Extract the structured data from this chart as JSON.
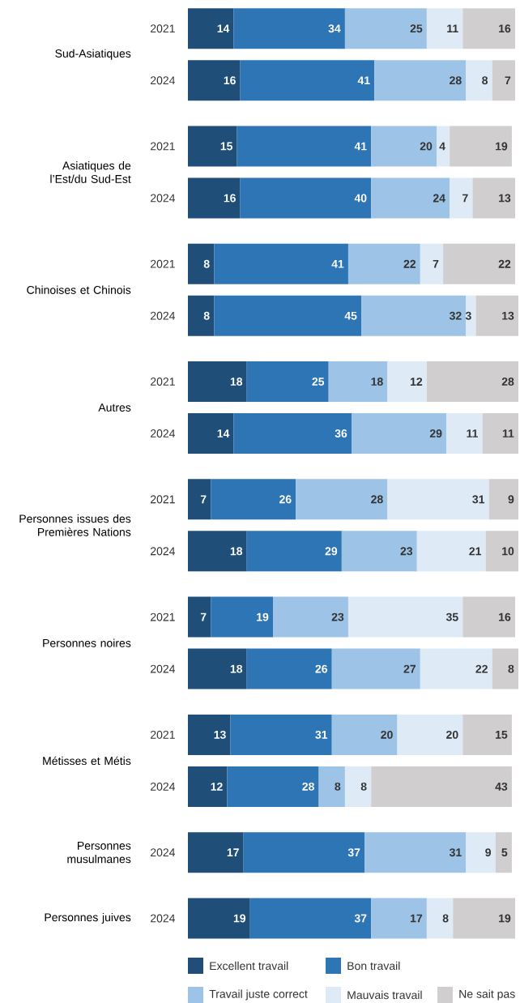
{
  "chart_data": {
    "type": "bar",
    "orientation": "horizontal",
    "stacked": true,
    "data_labels": true,
    "legend": "bottom",
    "tick_labels": "y",
    "xlim": [
      0,
      101
    ],
    "categories": [
      "2021",
      "2024",
      "2021",
      "2024",
      "2021",
      "2024",
      "2021",
      "2024",
      "2021",
      "2024",
      "2021",
      "2024",
      "2021",
      "2024",
      "2024",
      "2024"
    ],
    "annotations": [
      "Sud-Asiatiques",
      "Asiatiques de l’Est/du Sud-Est",
      "Chinoises et Chinois",
      "Autres",
      "Personnes issues des Premières Nations",
      "Personnes  noires",
      "Métisses et Métis",
      "Personnes musulmanes",
      "Personnes  juives"
    ],
    "series": [
      {
        "name": "Excellent travail",
        "color": "#1f4e79",
        "values": [
          14,
          16,
          15,
          16,
          8,
          8,
          18,
          14,
          7,
          18,
          7,
          18,
          13,
          12,
          17,
          19
        ]
      },
      {
        "name": "Bon travail",
        "color": "#2e75b6",
        "values": [
          34,
          41,
          41,
          40,
          41,
          45,
          25,
          36,
          26,
          29,
          19,
          26,
          31,
          28,
          37,
          37
        ]
      },
      {
        "name": "Travail juste correct",
        "color": "#9dc3e6",
        "values": [
          25,
          28,
          20,
          24,
          22,
          32,
          18,
          29,
          28,
          23,
          23,
          27,
          20,
          8,
          31,
          17
        ]
      },
      {
        "name": "Mauvais travail",
        "color": "#deebf7",
        "values": [
          11,
          8,
          4,
          7,
          7,
          3,
          12,
          11,
          31,
          21,
          35,
          22,
          20,
          8,
          9,
          8
        ]
      },
      {
        "name": "Ne sait pas",
        "color": "#d0cece",
        "values": [
          16,
          7,
          19,
          13,
          22,
          13,
          28,
          11,
          9,
          10,
          16,
          8,
          15,
          43,
          5,
          19
        ]
      }
    ]
  }
}
